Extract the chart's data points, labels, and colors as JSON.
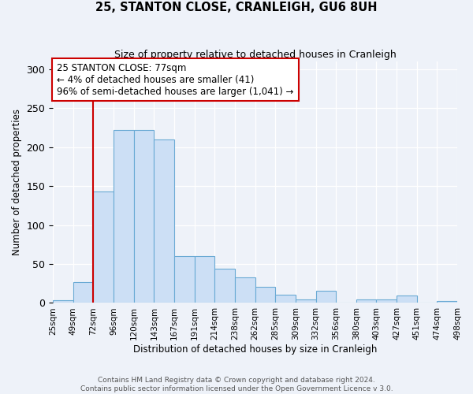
{
  "title": "25, STANTON CLOSE, CRANLEIGH, GU6 8UH",
  "subtitle": "Size of property relative to detached houses in Cranleigh",
  "xlabel": "Distribution of detached houses by size in Cranleigh",
  "ylabel": "Number of detached properties",
  "bar_values": [
    3,
    27,
    143,
    222,
    222,
    210,
    60,
    60,
    44,
    33,
    21,
    11,
    5,
    16,
    0,
    5,
    5,
    10,
    0,
    2
  ],
  "bin_labels": [
    "25sqm",
    "49sqm",
    "72sqm",
    "96sqm",
    "120sqm",
    "143sqm",
    "167sqm",
    "191sqm",
    "214sqm",
    "238sqm",
    "262sqm",
    "285sqm",
    "309sqm",
    "332sqm",
    "356sqm",
    "380sqm",
    "403sqm",
    "427sqm",
    "451sqm",
    "474sqm",
    "498sqm"
  ],
  "bar_color": "#ccdff5",
  "bar_edge_color": "#6aaad4",
  "vline_color": "#cc0000",
  "annotation_title": "25 STANTON CLOSE: 77sqm",
  "annotation_line1": "← 4% of detached houses are smaller (41)",
  "annotation_line2": "96% of semi-detached houses are larger (1,041) →",
  "annotation_box_color": "#ffffff",
  "annotation_box_edge_color": "#cc0000",
  "ylim": [
    0,
    310
  ],
  "yticks": [
    0,
    50,
    100,
    150,
    200,
    250,
    300
  ],
  "background_color": "#eef2f9",
  "grid_color": "#ffffff",
  "footer_line1": "Contains HM Land Registry data © Crown copyright and database right 2024.",
  "footer_line2": "Contains public sector information licensed under the Open Government Licence v 3.0."
}
